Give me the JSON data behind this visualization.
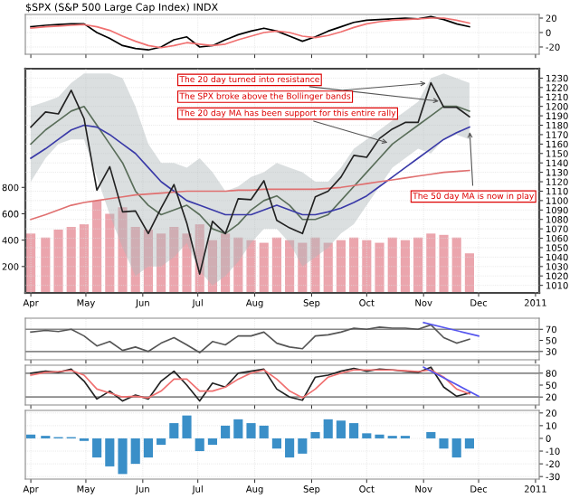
{
  "chart_data": [
    {
      "type": "line",
      "title": "$SPX (S&P 500 Large Cap Index) INDX",
      "tick_labels": "y",
      "grid": true,
      "x": [
        "2010-04-01",
        "2010-04-09",
        "2010-04-16",
        "2010-04-23",
        "2010-04-30",
        "2010-05-07",
        "2010-05-14",
        "2010-05-21",
        "2010-05-28",
        "2010-06-04",
        "2010-06-11",
        "2010-06-18",
        "2010-06-25",
        "2010-07-02",
        "2010-07-09",
        "2010-07-16",
        "2010-07-23",
        "2010-07-30",
        "2010-08-06",
        "2010-08-13",
        "2010-08-20",
        "2010-08-27",
        "2010-09-03",
        "2010-09-10",
        "2010-09-17",
        "2010-09-24",
        "2010-10-01",
        "2010-10-08",
        "2010-10-15",
        "2010-10-22",
        "2010-10-29",
        "2010-11-05",
        "2010-11-12",
        "2010-11-19",
        "2010-11-26"
      ],
      "xlim": [
        "2010-03-29",
        "2011-01-03"
      ],
      "xticks": [
        {
          "value": "2010-04-01",
          "label": null
        },
        {
          "value": "2010-05-01",
          "label": null
        },
        {
          "value": "2010-06-01",
          "label": null
        },
        {
          "value": "2010-07-01",
          "label": null
        },
        {
          "value": "2010-08-01",
          "label": null
        },
        {
          "value": "2010-09-01",
          "label": null
        },
        {
          "value": "2010-10-01",
          "label": null
        },
        {
          "value": "2010-11-01",
          "label": null
        },
        {
          "value": "2010-12-01",
          "label": null
        },
        {
          "value": "2011-01-01",
          "label": null
        }
      ],
      "ylim": [
        -30,
        25
      ],
      "yticks": [
        -20,
        0,
        20
      ],
      "series": [
        {
          "color": "#000000",
          "values": [
            8,
            10,
            11,
            12,
            12,
            0,
            -8,
            -18,
            -22,
            -24,
            -20,
            -10,
            -6,
            -20,
            -18,
            -10,
            -3,
            2,
            6,
            2,
            -5,
            -12,
            -6,
            2,
            8,
            14,
            17,
            18,
            19,
            20,
            19,
            22,
            18,
            12,
            8
          ]
        },
        {
          "color": "#f07070",
          "values": [
            6,
            8,
            9,
            10,
            11,
            8,
            3,
            -5,
            -12,
            -18,
            -21,
            -18,
            -14,
            -16,
            -18,
            -16,
            -10,
            -5,
            0,
            2,
            0,
            -5,
            -7,
            -4,
            1,
            7,
            12,
            15,
            17,
            18,
            19,
            20,
            20,
            17,
            13
          ]
        }
      ]
    },
    {
      "type": "line",
      "grid": true,
      "x": [
        "2010-04-01",
        "2010-04-09",
        "2010-04-16",
        "2010-04-23",
        "2010-04-30",
        "2010-05-07",
        "2010-05-14",
        "2010-05-21",
        "2010-05-28",
        "2010-06-04",
        "2010-06-11",
        "2010-06-18",
        "2010-06-25",
        "2010-07-02",
        "2010-07-09",
        "2010-07-16",
        "2010-07-23",
        "2010-07-30",
        "2010-08-06",
        "2010-08-13",
        "2010-08-20",
        "2010-08-27",
        "2010-09-03",
        "2010-09-10",
        "2010-09-17",
        "2010-09-24",
        "2010-10-01",
        "2010-10-08",
        "2010-10-15",
        "2010-10-22",
        "2010-10-29",
        "2010-11-05",
        "2010-11-12",
        "2010-11-19",
        "2010-11-26"
      ],
      "xlim": [
        "2010-03-29",
        "2011-01-03"
      ],
      "xticks": [
        {
          "value": "2010-04-01",
          "label": "Apr"
        },
        {
          "value": "2010-05-01",
          "label": "May"
        },
        {
          "value": "2010-06-01",
          "label": "Jun"
        },
        {
          "value": "2010-07-01",
          "label": "Jul"
        },
        {
          "value": "2010-08-01",
          "label": "Aug"
        },
        {
          "value": "2010-09-01",
          "label": "Sep"
        },
        {
          "value": "2010-10-01",
          "label": "Oct"
        },
        {
          "value": "2010-11-01",
          "label": "Nov"
        },
        {
          "value": "2010-12-01",
          "label": "Dec"
        },
        {
          "value": "2011-01-01",
          "label": "2011"
        }
      ],
      "ylim": [
        1002,
        1240
      ],
      "yticks": [
        1010,
        1020,
        1030,
        1040,
        1050,
        1060,
        1070,
        1080,
        1090,
        1100,
        1110,
        1120,
        1130,
        1140,
        1150,
        1160,
        1170,
        1180,
        1190,
        1200,
        1210,
        1220,
        1230
      ],
      "y2lim": [
        0,
        1700
      ],
      "y2ticks": [
        200,
        400,
        600,
        800
      ],
      "series": [
        {
          "type": "bar",
          "axis": "y2",
          "color": "#eba5ad",
          "values": [
            450,
            420,
            480,
            500,
            520,
            700,
            600,
            650,
            500,
            480,
            450,
            500,
            450,
            520,
            400,
            450,
            420,
            400,
            380,
            420,
            400,
            380,
            420,
            380,
            400,
            420,
            400,
            380,
            420,
            400,
            420,
            450,
            440,
            420,
            300
          ]
        },
        {
          "color": "#5a6e5a",
          "values": [
            1160,
            1175,
            1185,
            1195,
            1200,
            1180,
            1160,
            1140,
            1110,
            1095,
            1085,
            1090,
            1095,
            1085,
            1070,
            1065,
            1075,
            1090,
            1100,
            1105,
            1095,
            1080,
            1080,
            1085,
            1100,
            1115,
            1130,
            1145,
            1160,
            1170,
            1180,
            1190,
            1200,
            1200,
            1195
          ],
          "upper": [
            1200,
            1205,
            1210,
            1225,
            1235,
            1235,
            1235,
            1230,
            1200,
            1160,
            1140,
            1140,
            1135,
            1145,
            1130,
            1110,
            1115,
            1125,
            1130,
            1140,
            1135,
            1130,
            1120,
            1120,
            1135,
            1155,
            1165,
            1175,
            1185,
            1195,
            1205,
            1230,
            1235,
            1230,
            1225
          ],
          "lower": [
            1120,
            1145,
            1160,
            1165,
            1165,
            1125,
            1085,
            1050,
            1020,
            1030,
            1030,
            1040,
            1055,
            1025,
            1010,
            1020,
            1035,
            1055,
            1070,
            1070,
            1055,
            1030,
            1040,
            1050,
            1065,
            1075,
            1095,
            1115,
            1135,
            1145,
            1155,
            1150,
            1165,
            1170,
            1165
          ]
        },
        {
          "color": "#3a3aa8",
          "values": [
            1145,
            1155,
            1165,
            1175,
            1180,
            1178,
            1170,
            1160,
            1150,
            1135,
            1120,
            1110,
            1100,
            1095,
            1090,
            1085,
            1085,
            1085,
            1090,
            1095,
            1090,
            1085,
            1085,
            1088,
            1092,
            1098,
            1105,
            1115,
            1125,
            1135,
            1145,
            1155,
            1165,
            1172,
            1178
          ]
        },
        {
          "color": "#e07070",
          "values": [
            1080,
            1085,
            1090,
            1095,
            1098,
            1100,
            1102,
            1104,
            1106,
            1107,
            1108,
            1109,
            1110,
            1110,
            1110,
            1110,
            1111,
            1111,
            1112,
            1112,
            1112,
            1112,
            1112,
            1113,
            1114,
            1116,
            1118,
            1120,
            1122,
            1124,
            1126,
            1128,
            1130,
            1131,
            1132
          ]
        },
        {
          "color": "#222222",
          "values": [
            1178,
            1194,
            1192,
            1217,
            1187,
            1111,
            1136,
            1088,
            1089,
            1065,
            1092,
            1117,
            1076,
            1022,
            1078,
            1065,
            1102,
            1101,
            1121,
            1079,
            1071,
            1065,
            1104,
            1110,
            1125,
            1148,
            1146,
            1166,
            1176,
            1183,
            1183,
            1225,
            1199,
            1199,
            1189
          ]
        }
      ],
      "annotations": [
        {
          "text": "The 20 day turned into resistance",
          "x": "2010-11-12",
          "y": 1205
        },
        {
          "text": "The SPX broke above the Bollinger bands",
          "x": "2010-11-05",
          "y": 1225
        },
        {
          "text": "The 50 day MA is now in play",
          "x": "2010-11-26",
          "y": 1178
        },
        {
          "text": "The 20 day MA has been support for this entire rally",
          "x": "2010-10-15",
          "y": 1160
        }
      ]
    },
    {
      "type": "line",
      "tick_labels": "y",
      "grid": "x",
      "x": [
        "2010-04-01",
        "2010-04-09",
        "2010-04-16",
        "2010-04-23",
        "2010-04-30",
        "2010-05-07",
        "2010-05-14",
        "2010-05-21",
        "2010-05-28",
        "2010-06-04",
        "2010-06-11",
        "2010-06-18",
        "2010-06-25",
        "2010-07-02",
        "2010-07-09",
        "2010-07-16",
        "2010-07-23",
        "2010-07-30",
        "2010-08-06",
        "2010-08-13",
        "2010-08-20",
        "2010-08-27",
        "2010-09-03",
        "2010-09-10",
        "2010-09-17",
        "2010-09-24",
        "2010-10-01",
        "2010-10-08",
        "2010-10-15",
        "2010-10-22",
        "2010-10-29",
        "2010-11-05",
        "2010-11-12",
        "2010-11-19",
        "2010-11-26"
      ],
      "xlim": [
        "2010-03-29",
        "2011-01-03"
      ],
      "xticks": [
        {
          "value": "2010-04-01",
          "label": null
        },
        {
          "value": "2010-05-01",
          "label": null
        },
        {
          "value": "2010-06-01",
          "label": null
        },
        {
          "value": "2010-07-01",
          "label": null
        },
        {
          "value": "2010-08-01",
          "label": null
        },
        {
          "value": "2010-09-01",
          "label": null
        },
        {
          "value": "2010-10-01",
          "label": null
        },
        {
          "value": "2010-11-01",
          "label": null
        },
        {
          "value": "2010-12-01",
          "label": null
        },
        {
          "value": "2011-01-01",
          "label": null
        }
      ],
      "ylim": [
        15,
        90
      ],
      "yticks": [
        30,
        50,
        70
      ],
      "ref_lines": [
        {
          "axis": "y",
          "value": 70,
          "color": "#888888"
        },
        {
          "axis": "y",
          "value": 30,
          "color": "#888888"
        }
      ],
      "series": [
        {
          "color": "#555555",
          "values": [
            65,
            68,
            66,
            70,
            58,
            40,
            48,
            32,
            38,
            30,
            45,
            55,
            42,
            28,
            48,
            42,
            58,
            58,
            65,
            45,
            38,
            35,
            58,
            60,
            65,
            72,
            70,
            74,
            72,
            72,
            70,
            78,
            55,
            45,
            52
          ]
        },
        {
          "color": "#5555ee",
          "x": [
            "2010-11-01",
            "2010-12-01"
          ],
          "values": [
            82,
            58
          ]
        }
      ]
    },
    {
      "type": "line",
      "tick_labels": "y",
      "grid": "x",
      "x": [
        "2010-04-01",
        "2010-04-09",
        "2010-04-16",
        "2010-04-23",
        "2010-04-30",
        "2010-05-07",
        "2010-05-14",
        "2010-05-21",
        "2010-05-28",
        "2010-06-04",
        "2010-06-11",
        "2010-06-18",
        "2010-06-25",
        "2010-07-02",
        "2010-07-09",
        "2010-07-16",
        "2010-07-23",
        "2010-07-30",
        "2010-08-06",
        "2010-08-13",
        "2010-08-20",
        "2010-08-27",
        "2010-09-03",
        "2010-09-10",
        "2010-09-17",
        "2010-09-24",
        "2010-10-01",
        "2010-10-08",
        "2010-10-15",
        "2010-10-22",
        "2010-10-29",
        "2010-11-05",
        "2010-11-12",
        "2010-11-19",
        "2010-11-26"
      ],
      "xlim": [
        "2010-03-29",
        "2011-01-03"
      ],
      "xticks": [
        {
          "value": "2010-04-01",
          "label": null
        },
        {
          "value": "2010-05-01",
          "label": null
        },
        {
          "value": "2010-06-01",
          "label": null
        },
        {
          "value": "2010-07-01",
          "label": null
        },
        {
          "value": "2010-08-01",
          "label": null
        },
        {
          "value": "2010-09-01",
          "label": null
        },
        {
          "value": "2010-10-01",
          "label": null
        },
        {
          "value": "2010-11-01",
          "label": null
        },
        {
          "value": "2010-12-01",
          "label": null
        },
        {
          "value": "2011-01-01",
          "label": null
        }
      ],
      "ylim": [
        0,
        100
      ],
      "yticks": [
        20,
        50,
        80
      ],
      "ref_lines": [
        {
          "axis": "y",
          "value": 80,
          "color": "#888888"
        },
        {
          "axis": "y",
          "value": 20,
          "color": "#888888"
        }
      ],
      "series": [
        {
          "color": "#222222",
          "values": [
            80,
            85,
            82,
            90,
            60,
            15,
            35,
            10,
            25,
            15,
            60,
            85,
            50,
            10,
            55,
            45,
            80,
            85,
            90,
            40,
            20,
            12,
            70,
            75,
            85,
            92,
            85,
            90,
            88,
            85,
            82,
            95,
            45,
            22,
            30
          ]
        },
        {
          "color": "#f07070",
          "values": [
            75,
            82,
            84,
            87,
            75,
            40,
            30,
            20,
            22,
            18,
            35,
            65,
            65,
            35,
            35,
            45,
            65,
            80,
            88,
            65,
            35,
            18,
            40,
            70,
            80,
            88,
            88,
            88,
            88,
            86,
            84,
            88,
            70,
            40,
            28
          ]
        },
        {
          "color": "#5555ee",
          "x": [
            "2010-11-01",
            "2010-12-01"
          ],
          "values": [
            95,
            22
          ]
        }
      ]
    },
    {
      "type": "bar",
      "grid": true,
      "x": [
        "2010-04-01",
        "2010-04-09",
        "2010-04-16",
        "2010-04-23",
        "2010-04-30",
        "2010-05-07",
        "2010-05-14",
        "2010-05-21",
        "2010-05-28",
        "2010-06-04",
        "2010-06-11",
        "2010-06-18",
        "2010-06-25",
        "2010-07-02",
        "2010-07-09",
        "2010-07-16",
        "2010-07-23",
        "2010-07-30",
        "2010-08-06",
        "2010-08-13",
        "2010-08-20",
        "2010-08-27",
        "2010-09-03",
        "2010-09-10",
        "2010-09-17",
        "2010-09-24",
        "2010-10-01",
        "2010-10-08",
        "2010-10-15",
        "2010-10-22",
        "2010-10-29",
        "2010-11-05",
        "2010-11-12",
        "2010-11-19",
        "2010-11-26"
      ],
      "xlim": [
        "2010-03-29",
        "2011-01-03"
      ],
      "xticks": [
        {
          "value": "2010-04-01",
          "label": "Apr"
        },
        {
          "value": "2010-05-01",
          "label": "May"
        },
        {
          "value": "2010-06-01",
          "label": "Jun"
        },
        {
          "value": "2010-07-01",
          "label": "Jul"
        },
        {
          "value": "2010-08-01",
          "label": "Aug"
        },
        {
          "value": "2010-09-01",
          "label": "Sep"
        },
        {
          "value": "2010-10-01",
          "label": "Oct"
        },
        {
          "value": "2010-11-01",
          "label": "Nov"
        },
        {
          "value": "2010-12-01",
          "label": "Dec"
        },
        {
          "value": "2011-01-01",
          "label": "2011"
        }
      ],
      "ylim": [
        -32,
        22
      ],
      "yticks": [
        -30,
        -20,
        -10,
        0,
        10,
        20
      ],
      "series": [
        {
          "color": "#3a8fc8",
          "values": [
            3,
            2,
            1,
            1,
            -2,
            -15,
            -22,
            -28,
            -20,
            -15,
            -5,
            12,
            18,
            -10,
            -5,
            10,
            15,
            12,
            10,
            -8,
            -15,
            -12,
            5,
            15,
            14,
            12,
            4,
            3,
            2,
            2,
            0,
            5,
            -8,
            -15,
            -8
          ]
        }
      ]
    }
  ]
}
